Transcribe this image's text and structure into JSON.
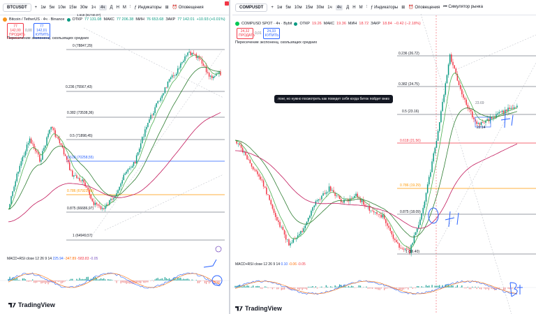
{
  "colors": {
    "up": "#089981",
    "down": "#f23645",
    "ema_fast": "#4caf50",
    "ema_mid": "#2e7d32",
    "ema_slow": "#c2185b",
    "fib_blue": "#2962ff",
    "fib_orange": "#ff9800",
    "accent": "#2962ff"
  },
  "left": {
    "toolbar": {
      "symbol": "BTCUSDT",
      "items": [
        "+",
        "1м",
        "5м",
        "10м",
        "15м",
        "30м",
        "1ч",
        "4ч",
        "Д",
        "Н",
        "M"
      ],
      "active_item": "4ч",
      "indicators": "Индикаторы",
      "alerts": "Оповещения"
    },
    "legend": {
      "title": "Bitcoin / TetherUS · 4ч · Binance",
      "o": "ОТКР",
      "o_val": "77 131.08",
      "h": "МАКС",
      "h_val": "77 206.38",
      "l": "МИН",
      "l_val": "76 653.68",
      "c": "ЗАКР",
      "c_val": "77 142.01",
      "chg": "+10.93 (+0.01%)"
    },
    "top_fib_label": "1.618 (81740.07)",
    "sell": {
      "price": "77 142,00",
      "label": "ПРОДАТЬ"
    },
    "spread": "0,00",
    "buy": {
      "price": "77 142,01",
      "label": "КУПИТЬ"
    },
    "ema_label": "Пересечение экспоненц. скользящих средних",
    "fib": [
      {
        "label": "0 (78847,29)"
      },
      {
        "label": "0.236 (75567,43)"
      },
      {
        "label": "0.382 (73538,36)"
      },
      {
        "label": "0.5 (71898,45)"
      },
      {
        "label": "0.618 (70258,55)"
      },
      {
        "label": "0.786 (67923,48)"
      },
      {
        "label": "0.875 (66686,97)"
      },
      {
        "label": "1 (64949,57)"
      }
    ],
    "macd": {
      "name": "MACD+RSI",
      "params": "close 12 26 9 14",
      "v1": "225.94",
      "v2": "-347.89",
      "v3": "-583.83",
      "v4": "-0.05"
    },
    "logo": "TradingView"
  },
  "right": {
    "toolbar": {
      "symbol": "COMPUSDT",
      "items": [
        "+",
        "1м",
        "5м",
        "10м",
        "15м",
        "30м",
        "1ч",
        "4ч",
        "Д",
        "Н",
        "M"
      ],
      "active_item": "4ч",
      "indicators": "Индикаторы",
      "alerts": "Оповещения",
      "replay": "Симулятор рынка"
    },
    "legend": {
      "title": "COMPUSD SPOT · 4ч · Bybit",
      "o": "ОТКР",
      "o_val": "19.26",
      "h": "МАКС",
      "h_val": "19.36",
      "l": "МИН",
      "l_val": "18.72",
      "c": "ЗАКР",
      "c_val": "18.84",
      "chg": "−0.42 (−2.18%)"
    },
    "sell": {
      "price": "24,32",
      "label": "ПРОДАТЬ"
    },
    "spread": "0,01",
    "buy": {
      "price": "24,33",
      "label": "КУПИТЬ"
    },
    "ema_label": "Пересечение экспоненц. скользящих средних",
    "tooltip": "лонг, но нужно посмотреть как поведет себя когда биток пойдет вниз",
    "fib": [
      {
        "label": "0.236 (26.72)"
      },
      {
        "label": "0.382 (24.75)"
      },
      {
        "label": "0.5 (23.16)"
      },
      {
        "label": "0.618 (21.56)"
      },
      {
        "label": "0.786 (19.29)"
      },
      {
        "label": "0.875 (18.09)"
      },
      {
        "label": "1 (16.40)"
      }
    ],
    "annot_price_1": "23.69",
    "annot_price_2": "22.14",
    "macd": {
      "name": "MACD+RSI",
      "params": "close 12 26 9 14",
      "v1": "0.10",
      "v2": "-0.06",
      "v3": "-0.05"
    },
    "logo": "TradingView"
  }
}
